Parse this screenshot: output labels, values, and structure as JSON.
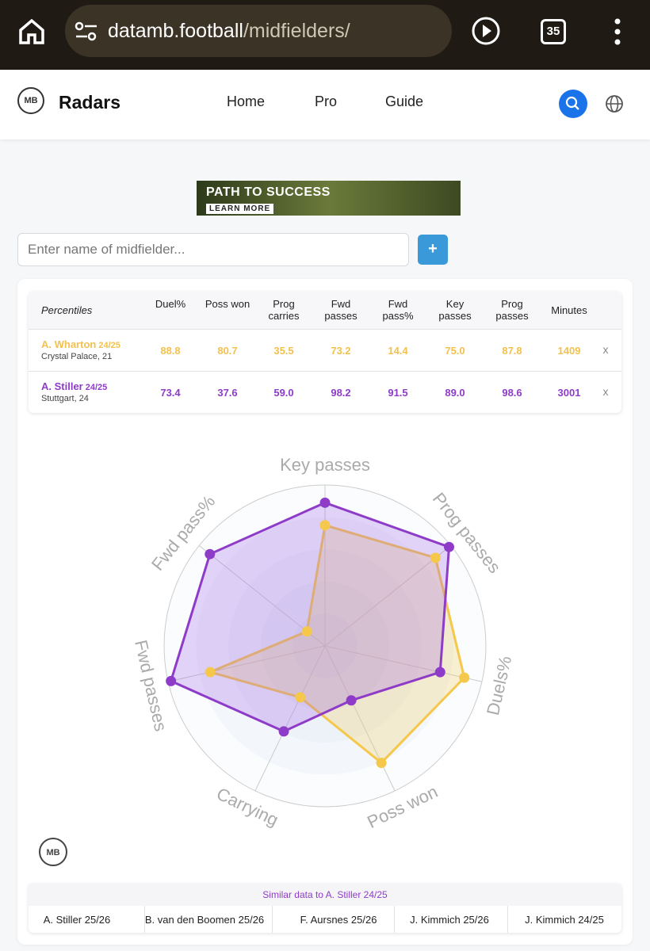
{
  "browser": {
    "url_host": "datamb.football",
    "url_path": "/midfielders/",
    "tab_count": "35"
  },
  "nav": {
    "logo": "MB",
    "brand": "Radars",
    "links": [
      "Home",
      "Pro",
      "Guide"
    ]
  },
  "ad": {
    "headline": "PATH TO SUCCESS",
    "cta": "LEARN MORE"
  },
  "search": {
    "placeholder": "Enter name of midfielder...",
    "button": "+"
  },
  "table": {
    "header": [
      "Percentiles",
      "Duel%",
      "Poss won",
      "Prog carries",
      "Fwd passes",
      "Fwd pass%",
      "Key passes",
      "Prog passes",
      "Minutes"
    ],
    "rows": [
      {
        "name": "A. Wharton",
        "season": "24/25",
        "club": "Crystal Palace, 21",
        "color": "#f2c14e",
        "values": [
          "88.8",
          "80.7",
          "35.5",
          "73.2",
          "14.4",
          "75.0",
          "87.8",
          "1409"
        ],
        "remove": "x"
      },
      {
        "name": "A. Stiller",
        "season": "24/25",
        "club": "Stuttgart, 24",
        "color": "#8e3cc8",
        "values": [
          "73.4",
          "37.6",
          "59.0",
          "98.2",
          "91.5",
          "89.0",
          "98.6",
          "3001"
        ],
        "remove": "x"
      }
    ]
  },
  "chart_data": {
    "type": "radar",
    "axes": [
      "Key passes",
      "Prog passes",
      "Duels%",
      "Poss won",
      "Carrying",
      "Fwd passes",
      "Fwd pass%"
    ],
    "rlim": [
      0,
      100
    ],
    "rticks": [
      20,
      40,
      60,
      80,
      100
    ],
    "series": [
      {
        "color": "#f5c84c",
        "values": [
          75.0,
          87.8,
          88.8,
          80.7,
          35.5,
          73.2,
          14.4
        ]
      },
      {
        "color": "#8e3cc8",
        "values": [
          89.0,
          98.6,
          73.4,
          37.6,
          59.0,
          98.2,
          91.5
        ]
      }
    ]
  },
  "watermark": "MB",
  "similar": {
    "title": "Similar data to A. Stiller 24/25",
    "items": [
      "A. Stiller 25/26",
      "B. van den Boomen 25/26",
      "F. Aursnes 25/26",
      "J. Kimmich 25/26",
      "J. Kimmich 24/25"
    ]
  }
}
